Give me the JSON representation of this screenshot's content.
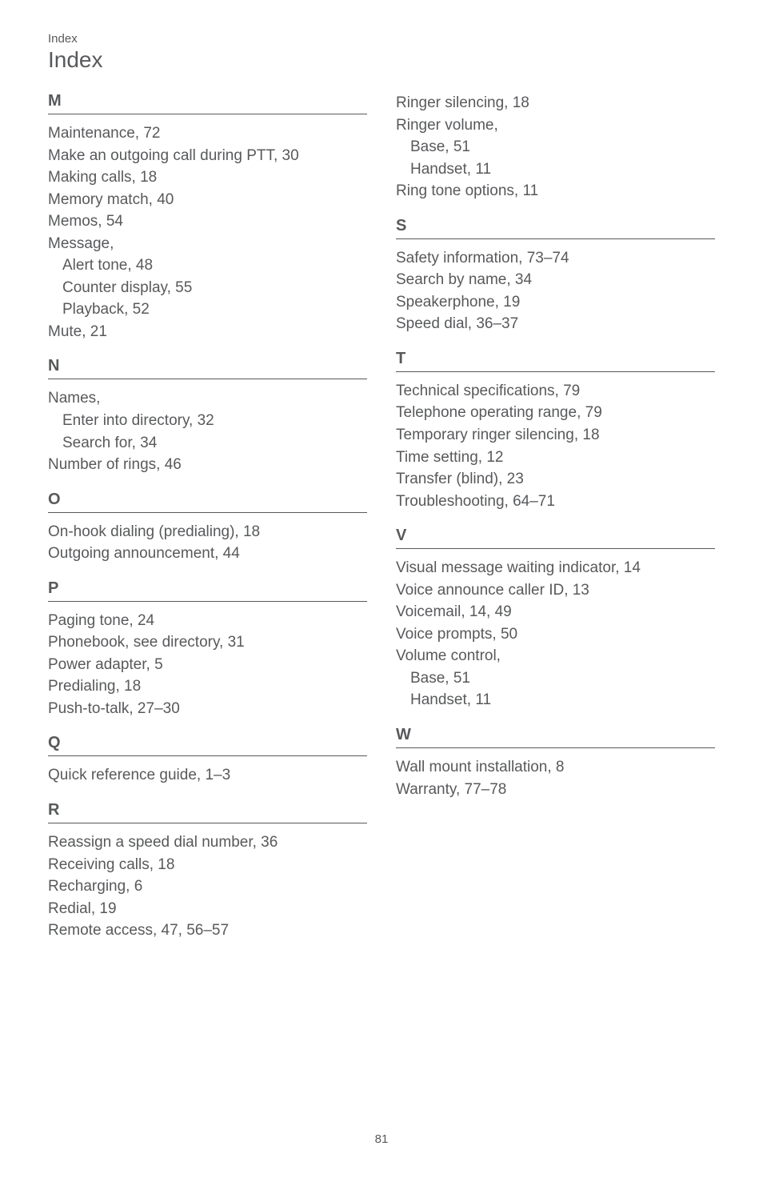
{
  "header": {
    "small": "Index",
    "large": "Index"
  },
  "footer": {
    "page_number": "81"
  },
  "colors": {
    "text": "#58595b",
    "rule": "#58595b",
    "background": "#ffffff"
  },
  "left": {
    "M": {
      "letter": "M",
      "items": [
        {
          "t": "Maintenance, 72"
        },
        {
          "t": "Make an outgoing call during PTT, 30"
        },
        {
          "t": "Making calls, 18"
        },
        {
          "t": "Memory match, 40"
        },
        {
          "t": "Memos, 54"
        },
        {
          "t": "Message,"
        },
        {
          "t": "Alert tone, 48",
          "indent": true
        },
        {
          "t": "Counter display, 55",
          "indent": true
        },
        {
          "t": "Playback, 52",
          "indent": true
        },
        {
          "t": "Mute, 21"
        }
      ]
    },
    "N": {
      "letter": "N",
      "items": [
        {
          "t": "Names,"
        },
        {
          "t": "Enter into directory, 32",
          "indent": true
        },
        {
          "t": "Search for, 34",
          "indent": true
        },
        {
          "t": "Number of rings, 46"
        }
      ]
    },
    "O": {
      "letter": "O",
      "items": [
        {
          "t": "On-hook dialing (predialing), 18"
        },
        {
          "t": "Outgoing announcement, 44"
        }
      ]
    },
    "P": {
      "letter": "P",
      "items": [
        {
          "t": "Paging tone, 24"
        },
        {
          "t": "Phonebook, see directory, 31"
        },
        {
          "t": "Power adapter, 5"
        },
        {
          "t": "Predialing, 18"
        },
        {
          "t": "Push-to-talk, 27–30"
        }
      ]
    },
    "Q": {
      "letter": "Q",
      "items": [
        {
          "t": "Quick reference guide, 1–3"
        }
      ]
    },
    "R": {
      "letter": "R",
      "items": [
        {
          "t": "Reassign a speed dial number, 36"
        },
        {
          "t": "Receiving calls, 18"
        },
        {
          "t": "Recharging, 6"
        },
        {
          "t": "Redial, 19"
        },
        {
          "t": "Remote access, 47, 56–57"
        }
      ]
    }
  },
  "right": {
    "R_cont": {
      "items": [
        {
          "t": "Ringer silencing, 18"
        },
        {
          "t": "Ringer volume,"
        },
        {
          "t": "Base, 51",
          "indent": true
        },
        {
          "t": "Handset, 11",
          "indent": true
        },
        {
          "t": "Ring tone options, 11"
        }
      ]
    },
    "S": {
      "letter": "S",
      "items": [
        {
          "t": "Safety information, 73–74"
        },
        {
          "t": "Search by name, 34"
        },
        {
          "t": "Speakerphone, 19"
        },
        {
          "t": "Speed dial, 36–37"
        }
      ]
    },
    "T": {
      "letter": "T",
      "items": [
        {
          "t": "Technical specifications, 79"
        },
        {
          "t": "Telephone operating range, 79"
        },
        {
          "t": "Temporary ringer silencing, 18"
        },
        {
          "t": "Time setting, 12"
        },
        {
          "t": "Transfer (blind), 23"
        },
        {
          "t": "Troubleshooting, 64–71"
        }
      ]
    },
    "V": {
      "letter": "V",
      "items": [
        {
          "t": "Visual message waiting indicator, 14"
        },
        {
          "t": "Voice announce caller ID, 13"
        },
        {
          "t": "Voicemail, 14, 49"
        },
        {
          "t": "Voice prompts, 50"
        },
        {
          "t": "Volume control,"
        },
        {
          "t": "Base, 51",
          "indent": true
        },
        {
          "t": "Handset, 11",
          "indent": true
        }
      ]
    },
    "W": {
      "letter": "W",
      "items": [
        {
          "t": "Wall mount installation, 8"
        },
        {
          "t": "Warranty, 77–78"
        }
      ]
    }
  }
}
